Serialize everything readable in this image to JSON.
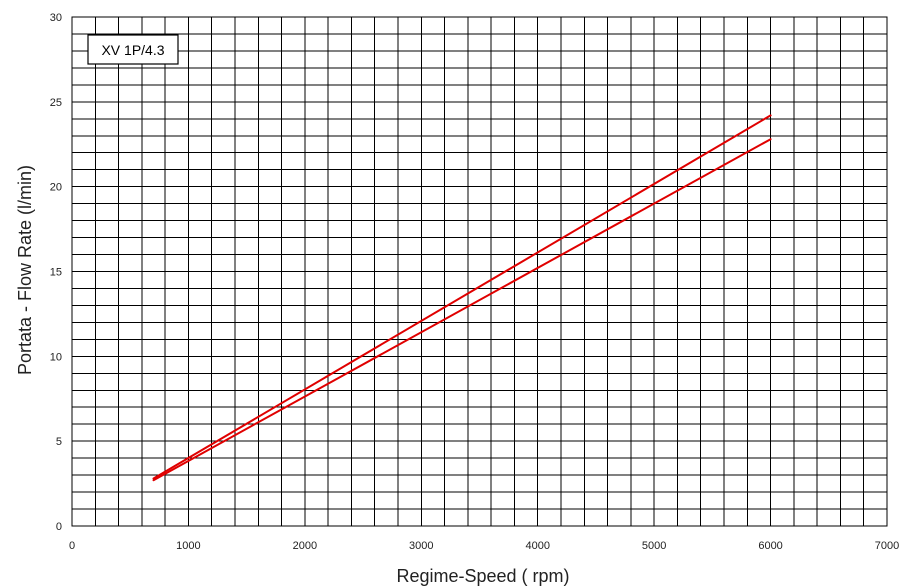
{
  "chart_data": {
    "type": "line",
    "title": "",
    "xlabel": "Regime-Speed ( rpm)",
    "ylabel": "Portata - Flow Rate (l/min)",
    "xlim": [
      0,
      7000
    ],
    "ylim": [
      0,
      30
    ],
    "x_ticks": [
      0,
      1000,
      2000,
      3000,
      4000,
      5000,
      6000,
      7000
    ],
    "y_ticks": [
      0,
      5,
      10,
      15,
      20,
      25,
      30
    ],
    "grid": true,
    "legend_box_label": "XV 1P/4.3",
    "series": [
      {
        "x": [
          700,
          6000
        ],
        "y": [
          2.8,
          24.2
        ],
        "color": "#e00000"
      },
      {
        "x": [
          700,
          6000
        ],
        "y": [
          2.7,
          22.8
        ],
        "color": "#e00000"
      }
    ]
  }
}
